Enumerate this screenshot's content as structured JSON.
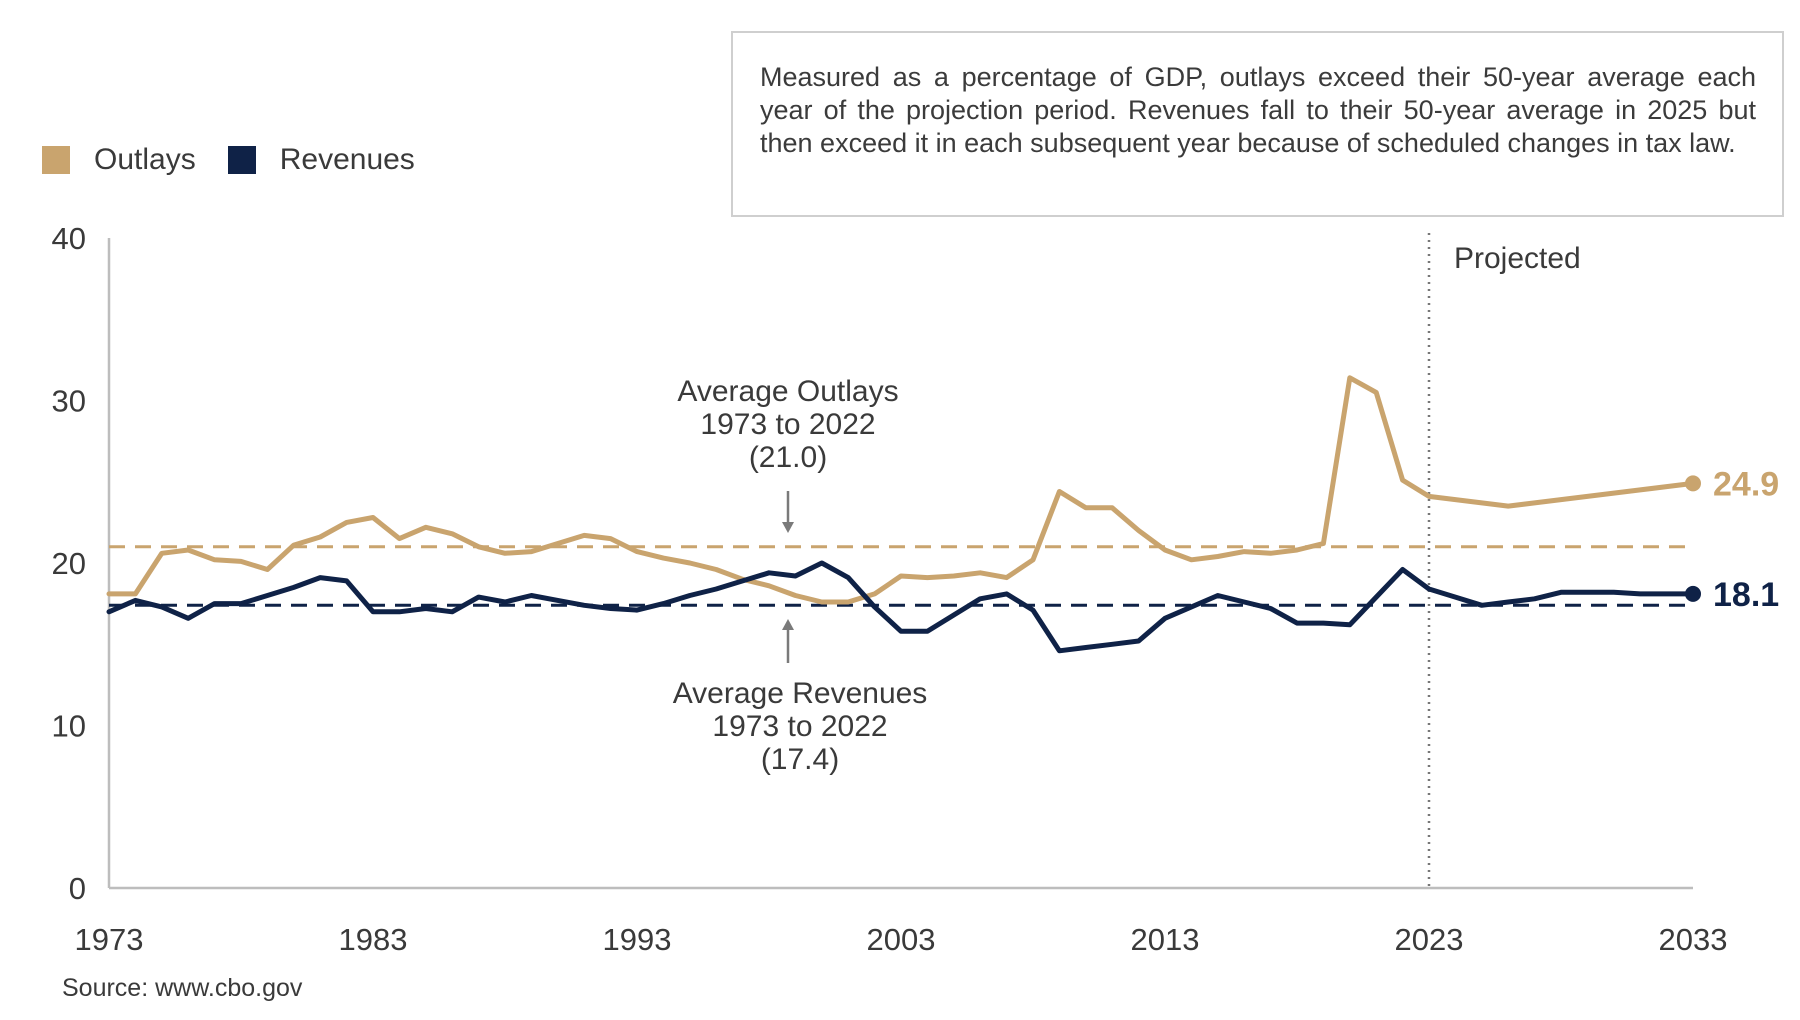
{
  "note": {
    "text": "Measured as a percentage of GDP, outlays exceed their 50-year average each year of the projection period. Revenues fall to their 50-year average in 2025 but then exceed it in each subsequent year because of scheduled changes in tax law."
  },
  "source": "Source: www.cbo.gov",
  "colors": {
    "outlays": "#c9a46e",
    "revenues": "#0f2247",
    "axis": "#bdbdbd",
    "text": "#3a3a3a"
  },
  "chart_data": {
    "type": "line",
    "title": "",
    "xlabel": "",
    "ylabel": "",
    "xlim": [
      1973,
      2033
    ],
    "ylim": [
      0,
      40
    ],
    "x_ticks": [
      "1973",
      "1983",
      "1993",
      "2003",
      "2013",
      "2023",
      "2033"
    ],
    "y_ticks": [
      "0",
      "10",
      "20",
      "30",
      "40"
    ],
    "grid": false,
    "legend_position": "top-left",
    "x": [
      1973,
      1974,
      1975,
      1976,
      1977,
      1978,
      1979,
      1980,
      1981,
      1982,
      1983,
      1984,
      1985,
      1986,
      1987,
      1988,
      1989,
      1990,
      1991,
      1992,
      1993,
      1994,
      1995,
      1996,
      1997,
      1998,
      1999,
      2000,
      2001,
      2002,
      2003,
      2004,
      2005,
      2006,
      2007,
      2008,
      2009,
      2010,
      2011,
      2012,
      2013,
      2014,
      2015,
      2016,
      2017,
      2018,
      2019,
      2020,
      2021,
      2022,
      2023,
      2024,
      2025,
      2026,
      2027,
      2028,
      2029,
      2030,
      2031,
      2032,
      2033
    ],
    "series": [
      {
        "name": "Outlays",
        "values": [
          18.1,
          18.1,
          20.6,
          20.8,
          20.2,
          20.1,
          19.6,
          21.1,
          21.6,
          22.5,
          22.8,
          21.5,
          22.2,
          21.8,
          21.0,
          20.6,
          20.7,
          21.2,
          21.7,
          21.5,
          20.7,
          20.3,
          20.0,
          19.6,
          19.0,
          18.6,
          18.0,
          17.6,
          17.6,
          18.1,
          19.2,
          19.1,
          19.2,
          19.4,
          19.1,
          20.2,
          24.4,
          23.4,
          23.4,
          22.0,
          20.8,
          20.2,
          20.4,
          20.7,
          20.6,
          20.8,
          21.2,
          31.4,
          30.5,
          25.1,
          24.1,
          23.9,
          23.7,
          23.5,
          23.7,
          23.9,
          24.1,
          24.3,
          24.5,
          24.7,
          24.9
        ]
      },
      {
        "name": "Revenues",
        "values": [
          17.0,
          17.7,
          17.3,
          16.6,
          17.5,
          17.5,
          18.0,
          18.5,
          19.1,
          18.9,
          17.0,
          17.0,
          17.2,
          17.0,
          17.9,
          17.6,
          18.0,
          17.7,
          17.4,
          17.2,
          17.1,
          17.5,
          18.0,
          18.4,
          18.9,
          19.4,
          19.2,
          20.0,
          19.1,
          17.3,
          15.8,
          15.8,
          16.8,
          17.8,
          18.1,
          17.1,
          14.6,
          14.8,
          15.0,
          15.2,
          16.6,
          17.3,
          18.0,
          17.6,
          17.2,
          16.3,
          16.3,
          16.2,
          17.9,
          19.6,
          18.4,
          17.9,
          17.4,
          17.6,
          17.8,
          18.2,
          18.2,
          18.2,
          18.1,
          18.1,
          18.1
        ]
      }
    ],
    "averages": [
      {
        "series": "Outlays",
        "value": 21.0,
        "label_lines": [
          "Average Outlays",
          "1973 to 2022",
          "(21.0)"
        ]
      },
      {
        "series": "Revenues",
        "value": 17.4,
        "label_lines": [
          "Average Revenues",
          "1973 to 2022",
          "(17.4)"
        ]
      }
    ],
    "projection": {
      "start": 2023,
      "label": "Projected"
    },
    "end_labels": {
      "Outlays": "24.9",
      "Revenues": "18.1"
    }
  }
}
